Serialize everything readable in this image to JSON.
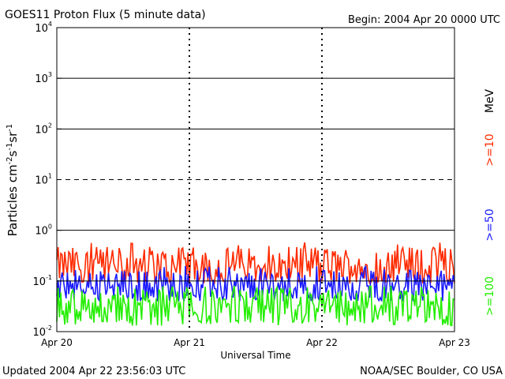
{
  "header": {
    "title": "GOES11 Proton Flux (5 minute data)",
    "begin": "Begin: 2004 Apr 20 0000 UTC"
  },
  "footer": {
    "updated": "Updated 2004 Apr 22 23:56:03 UTC",
    "credit": "NOAA/SEC Boulder, CO USA"
  },
  "colors": {
    "ge10": "#ff2a00",
    "ge50": "#1a1aff",
    "ge100": "#22ee00",
    "threshold": "#000000"
  },
  "chart_data": {
    "type": "line",
    "title": "GOES11 Proton Flux (5 minute data)",
    "xlabel": "Universal Time",
    "ylabel_parts": {
      "base": "Particles cm",
      "exp1": "-2",
      "s": "s",
      "exp2": "-1",
      "sr": "sr",
      "exp3": "-1"
    },
    "y_scale": "log",
    "ylim": [
      0.01,
      10000
    ],
    "y_ticks": [
      {
        "value": 10000,
        "base": "10",
        "exp": "4"
      },
      {
        "value": 1000,
        "base": "10",
        "exp": "3"
      },
      {
        "value": 100,
        "base": "10",
        "exp": "2"
      },
      {
        "value": 10,
        "base": "10",
        "exp": "1"
      },
      {
        "value": 1,
        "base": "10",
        "exp": "0"
      },
      {
        "value": 0.1,
        "base": "10",
        "exp": "-1"
      },
      {
        "value": 0.01,
        "base": "10",
        "exp": "-2"
      }
    ],
    "x_start": "2004 Apr 20 0000 UTC",
    "xlim_days": [
      0,
      3
    ],
    "x_ticks": [
      {
        "day": 0,
        "label": "Apr 20"
      },
      {
        "day": 1,
        "label": "Apr 21"
      },
      {
        "day": 2,
        "label": "Apr 22"
      },
      {
        "day": 3,
        "label": "Apr 23"
      }
    ],
    "threshold_lines": [
      {
        "value": 10,
        "style": "dashed"
      }
    ],
    "grid": "solid lines at each decade",
    "legend": {
      "placement": "right, vertical",
      "unit": "MeV",
      "items": [
        {
          "label": ">=10",
          "color": "#ff2a00"
        },
        {
          "label": ">=50",
          "color": "#1a1aff"
        },
        {
          "label": ">=100",
          "color": "#22ee00"
        }
      ]
    },
    "series": [
      {
        "channel": ">=10 MeV",
        "color": "#ff2a00",
        "typical": 0.2,
        "min": 0.09,
        "max": 0.6
      },
      {
        "channel": ">=50 MeV",
        "color": "#1a1aff",
        "typical": 0.08,
        "min": 0.04,
        "max": 0.2
      },
      {
        "channel": ">=100 MeV",
        "color": "#22ee00",
        "typical": 0.03,
        "min": 0.013,
        "max": 0.08
      }
    ]
  }
}
